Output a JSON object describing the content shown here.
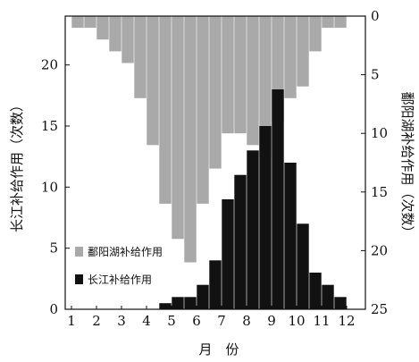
{
  "chart_data": {
    "type": "bar",
    "x_tick_labels": [
      "1",
      "2",
      "3",
      "4",
      "5",
      "6",
      "7",
      "8",
      "9",
      "10",
      "11",
      "12"
    ],
    "xlabel": "月　份",
    "ylabel_left": "长江补给作用（次数）",
    "ylabel_right": "鄱阳湖补给作用（次数）",
    "left_axis": {
      "range": [
        0,
        24
      ],
      "ticks": [
        "0",
        "5",
        "10",
        "15",
        "20"
      ]
    },
    "right_axis": {
      "range": [
        0,
        25
      ],
      "inverted": true,
      "ticks": [
        "0",
        "5",
        "10",
        "15",
        "20",
        "25"
      ]
    },
    "legend": [
      {
        "label": "鄱阳湖补给作用",
        "color": "#a9a9a9"
      },
      {
        "label": "长江补给作用",
        "color": "#111111"
      }
    ],
    "series": [
      {
        "name": "鄱阳湖补给作用",
        "axis": "right",
        "direction": "down",
        "color": "#a9a9a9",
        "month_start": [
          1,
          1.5,
          2,
          2.5,
          3,
          3.5,
          4,
          4.5,
          5,
          5.5,
          6,
          6.5,
          7,
          7.5,
          8,
          8.5,
          9,
          9.5,
          10,
          10.5,
          11,
          11.5,
          12
        ],
        "values": [
          1,
          1,
          2,
          3,
          4,
          7,
          11,
          16,
          19,
          21,
          16,
          13,
          10,
          10,
          11,
          12,
          9,
          7,
          6,
          3,
          1,
          1,
          0
        ]
      },
      {
        "name": "长江补给作用",
        "axis": "left",
        "direction": "up",
        "color": "#111111",
        "month_start": [
          1,
          1.5,
          2,
          2.5,
          3,
          3.5,
          4,
          4.5,
          5,
          5.5,
          6,
          6.5,
          7,
          7.5,
          8,
          8.5,
          9,
          9.5,
          10,
          10.5,
          11,
          11.5,
          12
        ],
        "values": [
          0,
          0,
          0,
          0,
          0,
          0,
          0,
          0.5,
          1,
          1,
          2,
          4,
          9,
          11,
          13,
          15,
          18,
          12,
          7,
          3,
          2,
          1,
          0
        ]
      }
    ]
  }
}
